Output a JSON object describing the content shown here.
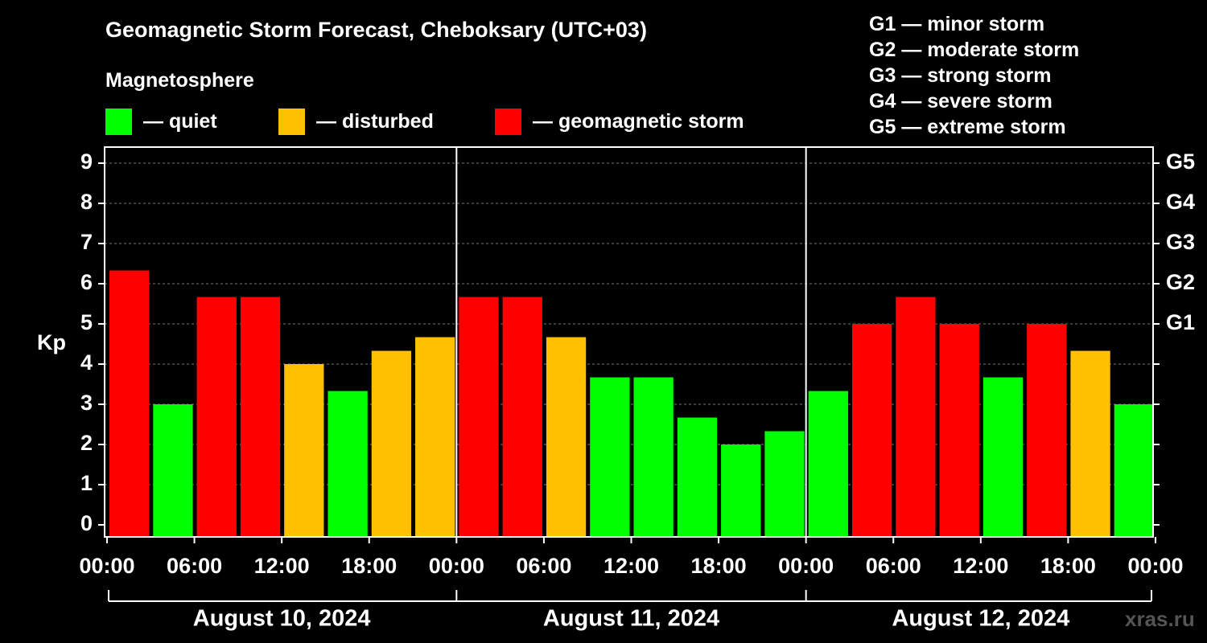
{
  "title": "Geomagnetic Storm Forecast, Cheboksary (UTC+03)",
  "subtitle": "Magnetosphere",
  "legend": [
    {
      "label": "— quiet",
      "color": "#00ff00"
    },
    {
      "label": "— disturbed",
      "color": "#ffc000"
    },
    {
      "label": "— geomagnetic storm",
      "color": "#ff0000"
    }
  ],
  "g_scale": [
    {
      "level": "G1",
      "desc": "— minor storm"
    },
    {
      "level": "G2",
      "desc": "— moderate storm"
    },
    {
      "level": "G3",
      "desc": "— strong storm"
    },
    {
      "level": "G4",
      "desc": "— severe storm"
    },
    {
      "level": "G5",
      "desc": "— extreme storm"
    }
  ],
  "watermark": "xras.ru",
  "chart_data": {
    "type": "bar",
    "ylabel": "Kp",
    "ylim": [
      -0.3,
      9.4
    ],
    "yticks": [
      0,
      1,
      2,
      3,
      4,
      5,
      6,
      7,
      8,
      9
    ],
    "right_axis_labels": [
      {
        "kp": 5,
        "label": "G1"
      },
      {
        "kp": 6,
        "label": "G2"
      },
      {
        "kp": 7,
        "label": "G3"
      },
      {
        "kp": 8,
        "label": "G4"
      },
      {
        "kp": 9,
        "label": "G5"
      }
    ],
    "grid": "dashed horizontal at each Kp level",
    "xtick_labels": [
      "00:00",
      "06:00",
      "12:00",
      "18:00",
      "00:00",
      "06:00",
      "12:00",
      "18:00",
      "00:00",
      "06:00",
      "12:00",
      "18:00",
      "00:00"
    ],
    "days": [
      "August 10, 2024",
      "August 11, 2024",
      "August 12, 2024"
    ],
    "values": [
      6.33,
      3.0,
      5.67,
      5.67,
      4.0,
      3.33,
      4.33,
      4.67,
      5.67,
      5.67,
      4.67,
      3.67,
      3.67,
      2.67,
      2.0,
      2.33,
      3.33,
      5.0,
      5.67,
      5.0,
      3.67,
      5.0,
      4.33,
      3.0
    ],
    "colors": {
      "quiet": "#00ff00",
      "disturbed": "#ffc000",
      "storm": "#ff0000"
    }
  }
}
